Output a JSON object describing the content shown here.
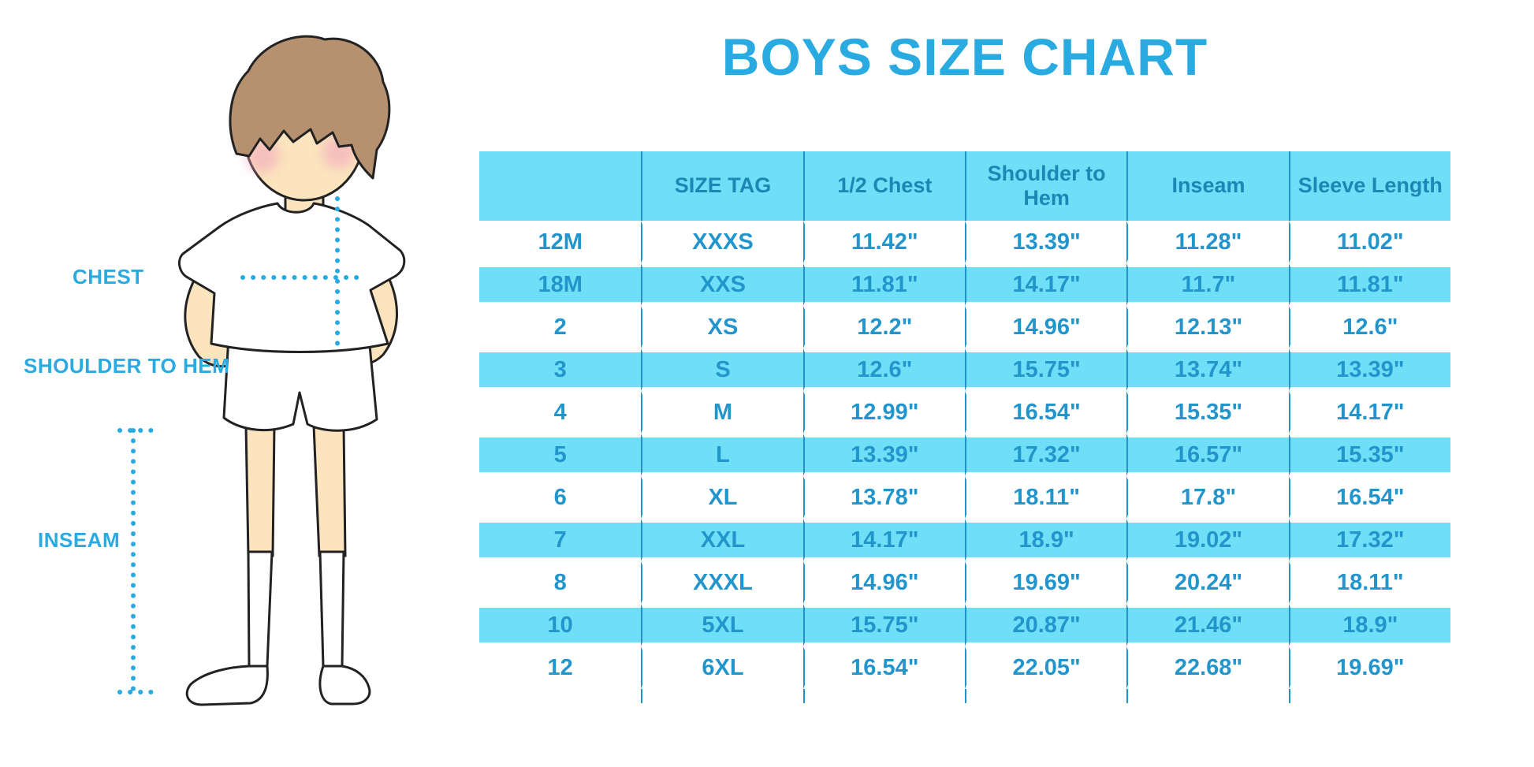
{
  "title": "BOYS SIZE CHART",
  "colors": {
    "accent_blue": "#29ABE2",
    "table_stripe_bg": "#6EDFF6",
    "table_line": "#2193C4",
    "header_text": "#1E86B4",
    "cell_text": "#2296CC",
    "skin": "#FBE4BE",
    "hair": "#B5916F",
    "blush": "#F2A8BC"
  },
  "diagram": {
    "labels": {
      "chest": "CHEST",
      "shoulder_to_hem": "SHOULDER TO HEM",
      "inseam": "INSEAM"
    }
  },
  "chart_data": {
    "type": "table",
    "title": "BOYS SIZE CHART",
    "headers": [
      "",
      "SIZE TAG",
      "1/2 Chest",
      "Shoulder to Hem",
      "Inseam",
      "Sleeve Length"
    ],
    "rows": [
      [
        "12M",
        "XXXS",
        "11.42\"",
        "13.39\"",
        "11.28\"",
        "11.02\""
      ],
      [
        "18M",
        "XXS",
        "11.81\"",
        "14.17\"",
        "11.7\"",
        "11.81\""
      ],
      [
        "2",
        "XS",
        "12.2\"",
        "14.96\"",
        "12.13\"",
        "12.6\""
      ],
      [
        "3",
        "S",
        "12.6\"",
        "15.75\"",
        "13.74\"",
        "13.39\""
      ],
      [
        "4",
        "M",
        "12.99\"",
        "16.54\"",
        "15.35\"",
        "14.17\""
      ],
      [
        "5",
        "L",
        "13.39\"",
        "17.32\"",
        "16.57\"",
        "15.35\""
      ],
      [
        "6",
        "XL",
        "13.78\"",
        "18.11\"",
        "17.8\"",
        "16.54\""
      ],
      [
        "7",
        "XXL",
        "14.17\"",
        "18.9\"",
        "19.02\"",
        "17.32\""
      ],
      [
        "8",
        "XXXL",
        "14.96\"",
        "19.69\"",
        "20.24\"",
        "18.11\""
      ],
      [
        "10",
        "5XL",
        "15.75\"",
        "20.87\"",
        "21.46\"",
        "18.9\""
      ],
      [
        "12",
        "6XL",
        "16.54\"",
        "22.05\"",
        "22.68\"",
        "19.69\""
      ]
    ],
    "striped_row_indices": [
      1,
      3,
      5,
      7,
      9
    ],
    "units": "inches",
    "legend_position": "none",
    "grid": "vertical-lines-only"
  }
}
